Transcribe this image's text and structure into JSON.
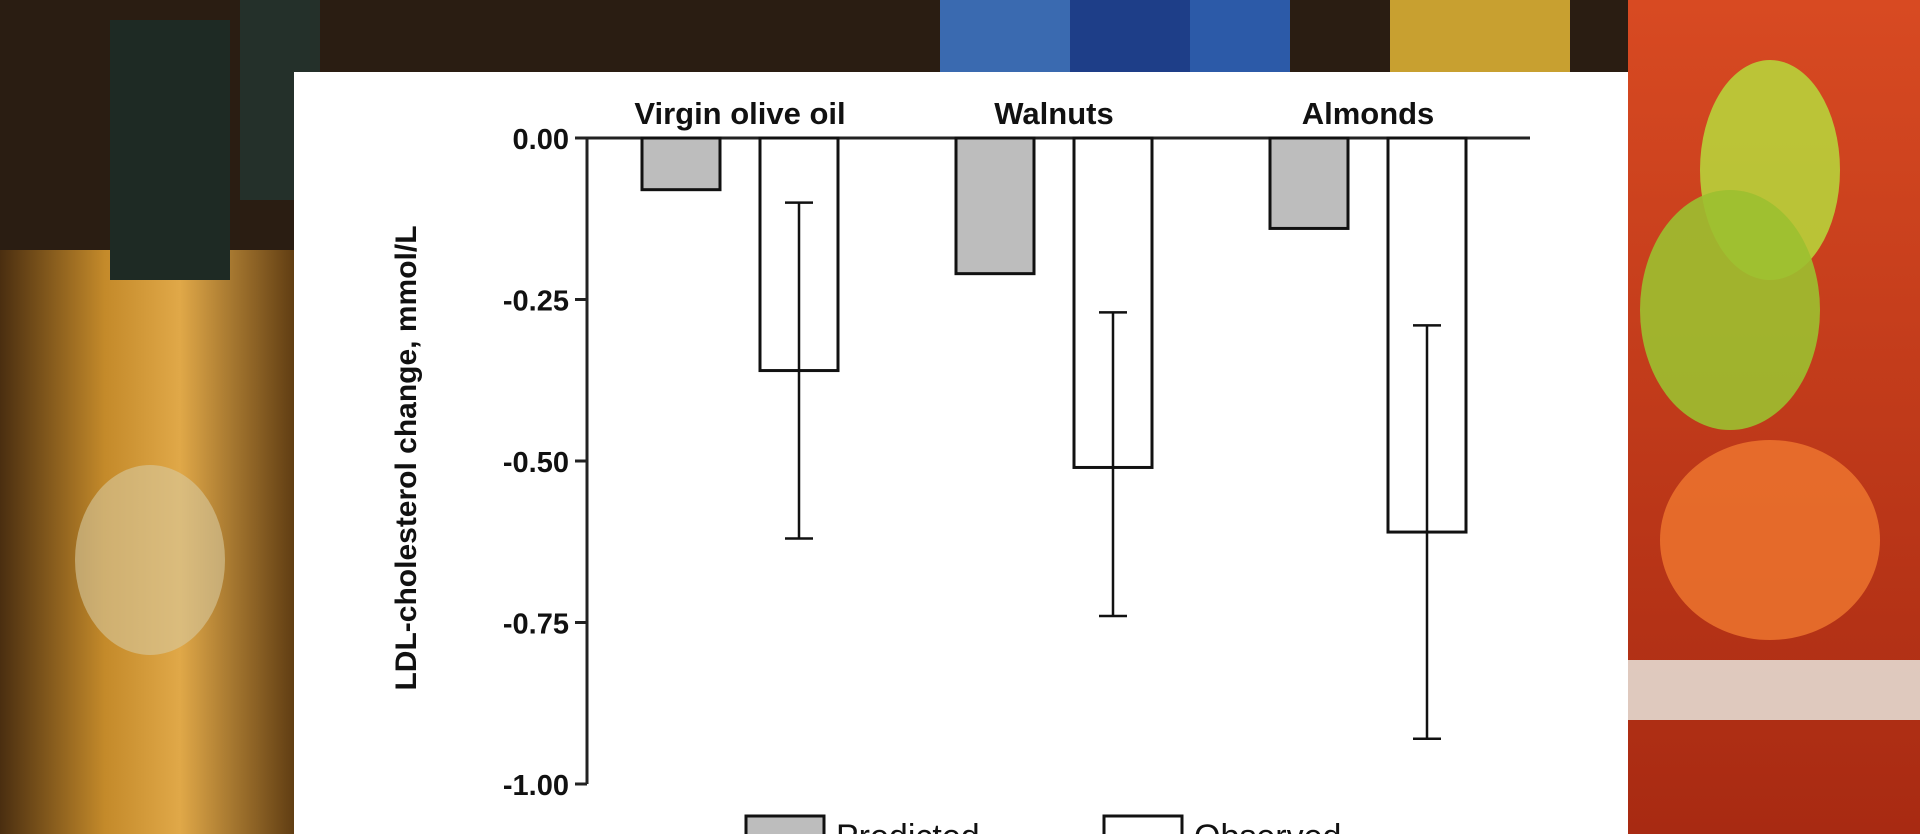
{
  "chart_data": {
    "type": "bar",
    "title": "",
    "xlabel": "",
    "ylabel": "LDL-cholesterol change, mmol/L",
    "categories": [
      "Virgin olive oil",
      "Walnuts",
      "Almonds"
    ],
    "category_position": "top",
    "ylim": [
      -1.0,
      0.0
    ],
    "yticks": [
      0.0,
      -0.25,
      -0.5,
      -0.75,
      -1.0
    ],
    "ytick_labels": [
      "0.00",
      "-0.25",
      "-0.50",
      "-0.75",
      "-1.00"
    ],
    "grid": false,
    "legend": "bottom",
    "series": [
      {
        "name": "Predicted",
        "values": [
          -0.08,
          -0.21,
          -0.14
        ],
        "color": "#bdbdbd"
      },
      {
        "name": "Observed",
        "values": [
          -0.36,
          -0.51,
          -0.61
        ],
        "color": "#ffffff",
        "error_low": [
          -0.62,
          -0.74,
          -0.93
        ],
        "error_high": [
          -0.1,
          -0.27,
          -0.29
        ]
      }
    ]
  },
  "background": {
    "colors": {
      "bottle": "#b07a1e",
      "shelf": "#3a2a1c",
      "juice": "#e0552a",
      "lime": "#b8d23a"
    }
  }
}
